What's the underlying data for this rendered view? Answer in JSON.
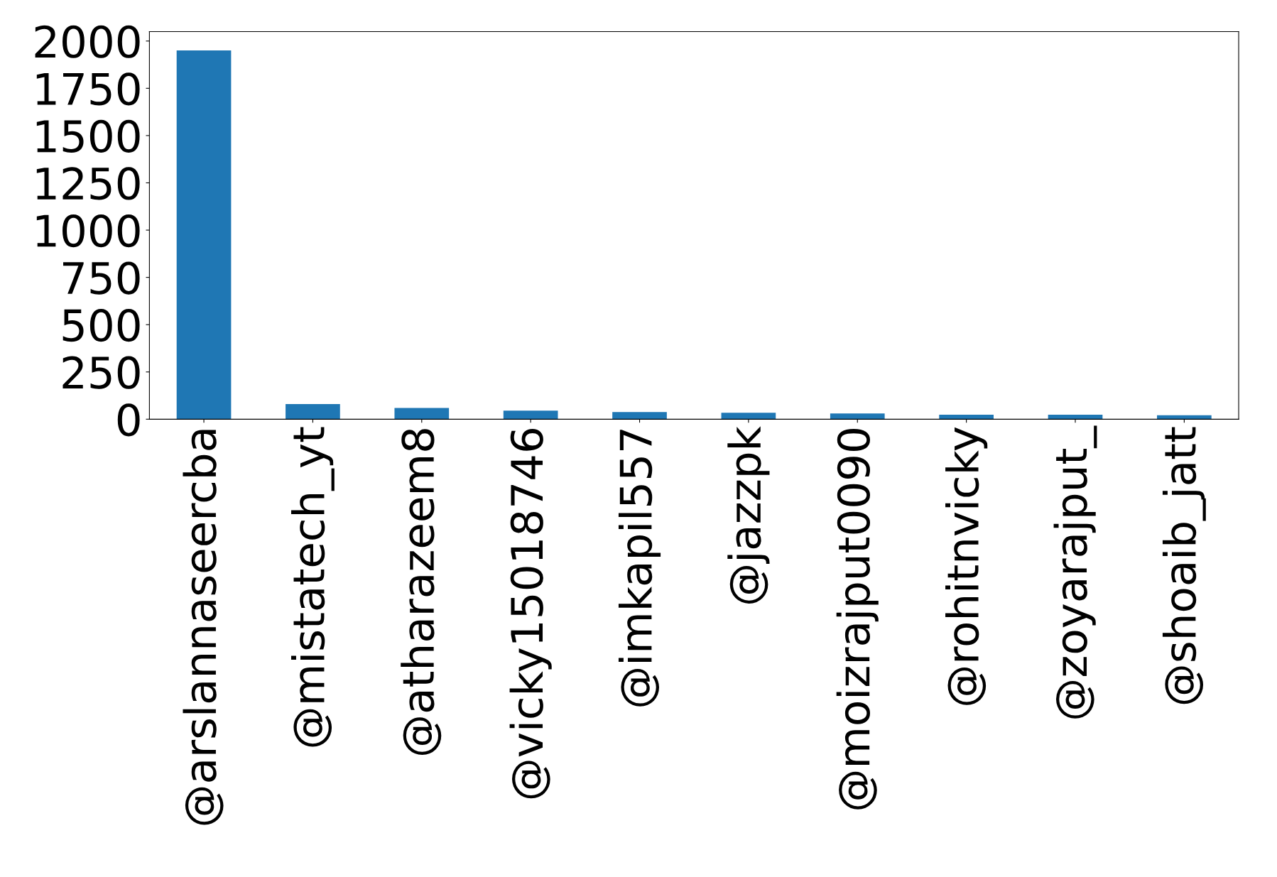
{
  "chart_data": {
    "type": "bar",
    "categories": [
      "@arslannaseercba",
      "@mistatech_yt",
      "@atharazeem8",
      "@vicky15018746",
      "@imkapil557",
      "@jazzpk",
      "@moizrajput0090",
      "@rohitnvicky",
      "@zoyarajput_",
      "@shoaib_jatt"
    ],
    "values": [
      1950,
      80,
      59,
      45,
      38,
      34,
      30,
      24,
      24,
      21
    ],
    "color": "#1f77b4",
    "ylim": [
      0,
      2050
    ],
    "yticks": [
      0,
      250,
      500,
      750,
      1000,
      1250,
      1500,
      1750,
      2000
    ],
    "grid": false
  }
}
